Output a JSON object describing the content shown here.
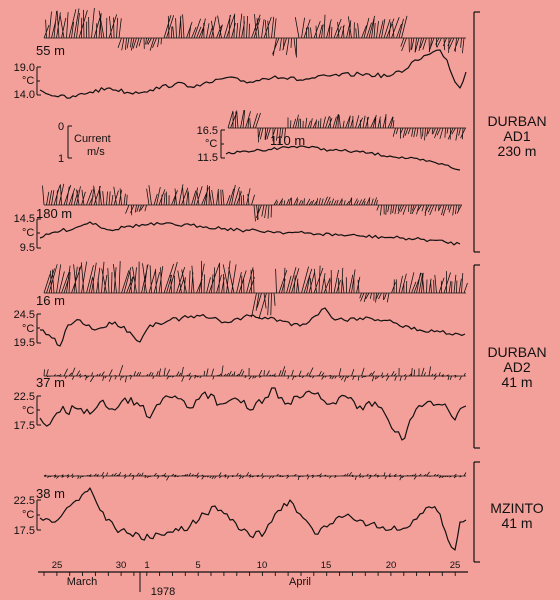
{
  "chart_data": {
    "type": "line",
    "x_axis": {
      "day_ticks": [
        "25",
        "30",
        "1",
        "5",
        "10",
        "15",
        "20",
        "25"
      ],
      "months": [
        "March",
        "April"
      ],
      "year": "1978"
    },
    "scale_key": {
      "min": "0",
      "max": "1",
      "label": "Current",
      "unit": "m/s"
    },
    "temp_unit": "°C",
    "panels": [
      {
        "site": [
          "DURBAN",
          "AD1",
          "230 m"
        ],
        "tracks": [
          {
            "depth": "55 m",
            "tmax": "19.0",
            "tmin": "14.0"
          },
          {
            "depth": "110 m",
            "tmax": "16.5",
            "tmin": "11.5"
          },
          {
            "depth": "180 m",
            "tmax": "14.5",
            "tmin": "9.5"
          }
        ]
      },
      {
        "site": [
          "DURBAN",
          "AD2",
          "41 m"
        ],
        "tracks": [
          {
            "depth": "16 m",
            "tmax": "24.5",
            "tmin": "19.5"
          },
          {
            "depth": "37 m",
            "tmax": "22.5",
            "tmin": "17.5"
          }
        ]
      },
      {
        "site": [
          "MZINTO",
          "41 m"
        ],
        "tracks": [
          {
            "depth": "38 m",
            "tmax": "22.5",
            "tmin": "17.5"
          }
        ]
      }
    ]
  }
}
